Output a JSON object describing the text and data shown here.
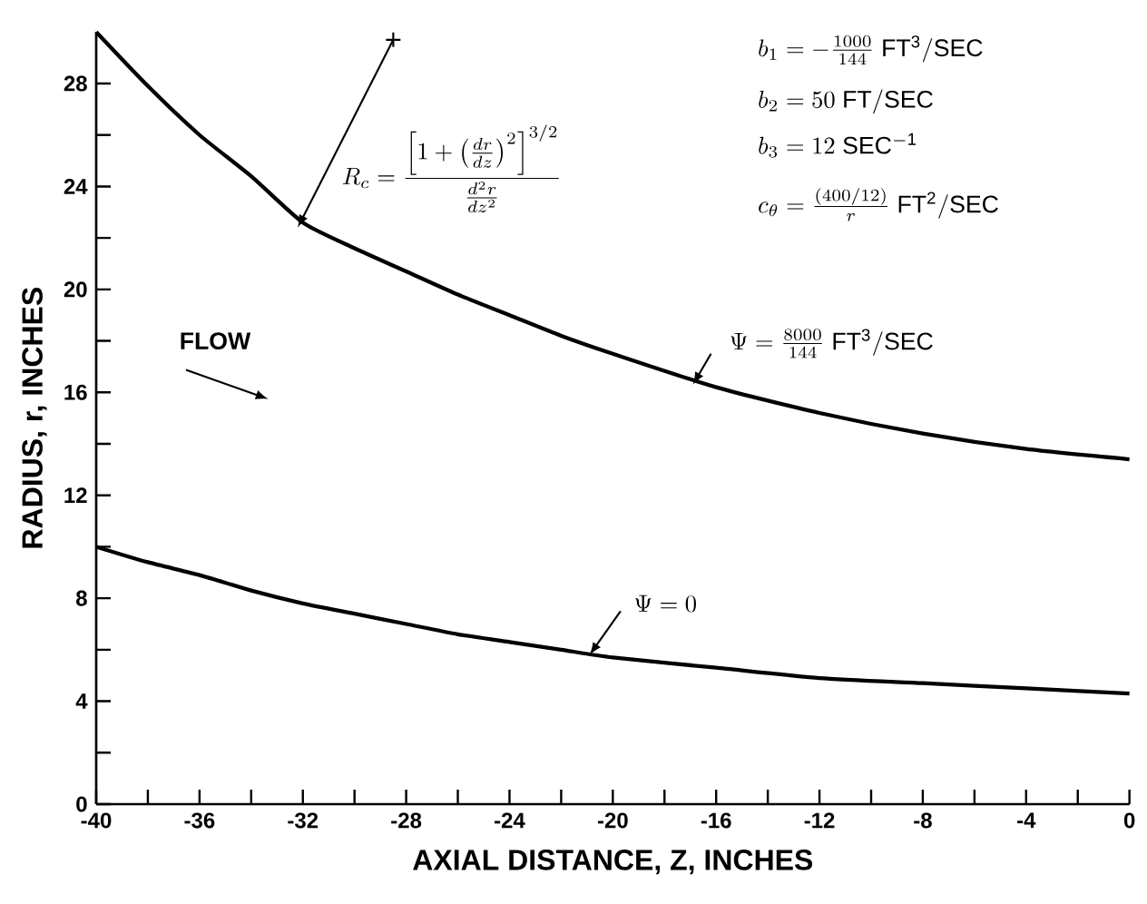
{
  "chart_data": {
    "type": "line",
    "xlabel": "AXIAL DISTANCE, Z, INCHES",
    "ylabel": "RADIUS, r, INCHES",
    "xlim": [
      -40,
      0
    ],
    "ylim": [
      0,
      30
    ],
    "xticks": [
      -40,
      {
        "value": -38,
        "label": null
      },
      -36,
      {
        "value": -34,
        "label": null
      },
      -32,
      {
        "value": -30,
        "label": null
      },
      -28,
      {
        "value": -26,
        "label": null
      },
      -24,
      {
        "value": -22,
        "label": null
      },
      -20,
      {
        "value": -18,
        "label": null
      },
      -16,
      {
        "value": -14,
        "label": null
      },
      -12,
      {
        "value": -10,
        "label": null
      },
      -8,
      {
        "value": -6,
        "label": null
      },
      -4,
      {
        "value": -2,
        "label": null
      },
      0
    ],
    "yticks": [
      0,
      {
        "value": 2,
        "label": null
      },
      4,
      {
        "value": 6,
        "label": null
      },
      8,
      {
        "value": 10,
        "label": null
      },
      12,
      {
        "value": 14,
        "label": null
      },
      16,
      {
        "value": 18,
        "label": null
      },
      20,
      {
        "value": 22,
        "label": null
      },
      24,
      {
        "value": 26,
        "label": null
      },
      28
    ],
    "line_style": "solid",
    "x": [
      -40,
      -38,
      -36,
      -34,
      -32,
      -30,
      -28,
      -26,
      -24,
      -22,
      -20,
      -16,
      -12,
      -8,
      -4,
      0
    ],
    "series": [
      {
        "color": "#000000",
        "values": [
          30.0,
          27.9,
          26.0,
          24.4,
          22.6,
          21.6,
          20.7,
          19.8,
          19.0,
          18.2,
          17.5,
          16.2,
          15.2,
          14.4,
          13.8,
          13.4
        ]
      },
      {
        "color": "#000000",
        "values": [
          10.0,
          9.4,
          8.9,
          8.3,
          7.8,
          7.4,
          7.0,
          6.6,
          6.3,
          6.0,
          5.7,
          5.3,
          4.9,
          4.7,
          4.5,
          4.3
        ]
      }
    ],
    "annotations": [
      {
        "text": "R_c = \\frac{\\left[1+\\left(\\frac{dr}{dz}\\right)^{2}\\right]^{3/2}}{\\frac{d^{2}r}{dz^{2}}}",
        "x": -32.2,
        "y": 22.4
      },
      "b_1 = -\\frac{1000}{144}\\ \\mathrm{FT^3/SEC}",
      "b_2 = 50\\ \\mathrm{FT/SEC}",
      "b_3 = 12\\ \\mathrm{SEC^{-1}}",
      "c_\\theta = \\frac{(400/12)}{r}\\ \\mathrm{FT^2/SEC}",
      "FLOW",
      {
        "text": "\\Psi = \\frac{8000}{144}\\ \\mathrm{FT^3/SEC}",
        "x": -16.9,
        "y": 16.3
      },
      {
        "text": "\\Psi = 0",
        "x": -20.9,
        "y": 5.8
      }
    ]
  }
}
